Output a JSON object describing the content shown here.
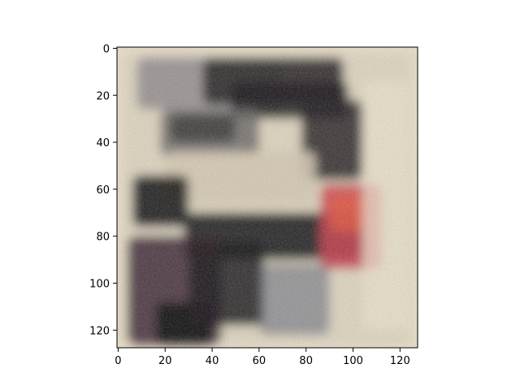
{
  "chart_data": {
    "type": "image",
    "xlim": [
      -0.5,
      127.5
    ],
    "ylim": [
      127.5,
      -0.5
    ],
    "x_ticks": [
      0,
      20,
      40,
      60,
      80,
      100,
      120
    ],
    "y_ticks": [
      0,
      20,
      40,
      60,
      80,
      100,
      120
    ],
    "x_tick_labels": [
      "0",
      "20",
      "40",
      "60",
      "80",
      "100",
      "120"
    ],
    "y_tick_labels": [
      "0",
      "20",
      "40",
      "60",
      "80",
      "100",
      "120"
    ],
    "grid": false,
    "image_content": {
      "background": "#e7dcc6",
      "regions": [
        {
          "x": [
            2,
            125
          ],
          "y": [
            2,
            126
          ],
          "color": "#d9d0bc",
          "opacity": 0.9
        },
        {
          "x": [
            8,
            70
          ],
          "y": [
            4,
            26
          ],
          "color": "#8f8a8d",
          "opacity": 0.85
        },
        {
          "x": [
            36,
            96
          ],
          "y": [
            4,
            24
          ],
          "color": "#2a2628",
          "opacity": 0.9
        },
        {
          "x": [
            48,
            98
          ],
          "y": [
            14,
            30
          ],
          "color": "#1e1b1d",
          "opacity": 0.85
        },
        {
          "x": [
            78,
            104
          ],
          "y": [
            22,
            56
          ],
          "color": "#242124",
          "opacity": 0.85
        },
        {
          "x": [
            18,
            60
          ],
          "y": [
            26,
            46
          ],
          "color": "#6c6868",
          "opacity": 0.85
        },
        {
          "x": [
            22,
            50
          ],
          "y": [
            28,
            40
          ],
          "color": "#2f2b2d",
          "opacity": 0.7
        },
        {
          "x": [
            20,
            84
          ],
          "y": [
            44,
            66
          ],
          "color": "#d3c7b0",
          "opacity": 0.9
        },
        {
          "x": [
            6,
            30
          ],
          "y": [
            54,
            76
          ],
          "color": "#161415",
          "opacity": 0.9
        },
        {
          "x": [
            28,
            104
          ],
          "y": [
            70,
            90
          ],
          "color": "#1c1a1d",
          "opacity": 0.9
        },
        {
          "x": [
            4,
            44
          ],
          "y": [
            80,
            126
          ],
          "color": "#3a2232",
          "opacity": 0.85
        },
        {
          "x": [
            16,
            40
          ],
          "y": [
            108,
            126
          ],
          "color": "#120f12",
          "opacity": 0.9
        },
        {
          "x": [
            30,
            62
          ],
          "y": [
            82,
            118
          ],
          "color": "#1c1a1c",
          "opacity": 0.85
        },
        {
          "x": [
            86,
            112
          ],
          "y": [
            58,
            94
          ],
          "color": "#c9404d",
          "opacity": 0.85
        },
        {
          "x": [
            90,
            106
          ],
          "y": [
            62,
            78
          ],
          "color": "#e2593f",
          "opacity": 0.75
        },
        {
          "x": [
            60,
            90
          ],
          "y": [
            92,
            122
          ],
          "color": "#5d6274",
          "opacity": 0.55
        },
        {
          "x": [
            104,
            124
          ],
          "y": [
            14,
            120
          ],
          "color": "#e8e0c9",
          "opacity": 0.75
        }
      ]
    }
  }
}
